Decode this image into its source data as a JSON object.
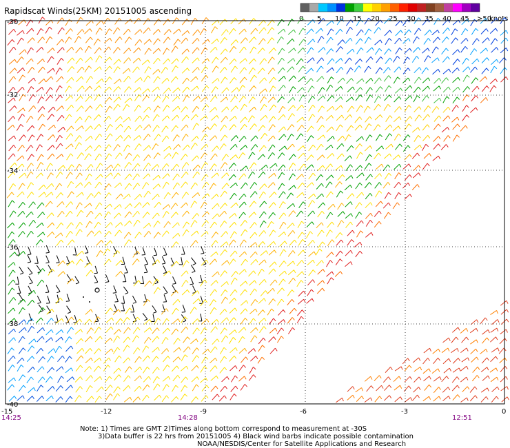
{
  "title": "Rapidscat Winds(25KM) 20151005 ascending",
  "legend": {
    "ticks": [
      "0",
      "5",
      "10",
      "15",
      "20",
      "25",
      "30",
      "35",
      "40",
      "45",
      ">50"
    ],
    "unit": "knots",
    "colors": [
      "#606060",
      "#a8a8a8",
      "#00c8ff",
      "#0090ff",
      "#0030e0",
      "#00a000",
      "#40d040",
      "#ffff00",
      "#ffd000",
      "#ffa000",
      "#ff6000",
      "#ff2000",
      "#e00000",
      "#c02020",
      "#804020",
      "#a06040",
      "#c040a0",
      "#ff00ff",
      "#a000c0",
      "#6000a0"
    ]
  },
  "lat_labels": [
    "-30",
    "-32",
    "-34",
    "-36",
    "-38",
    "-40"
  ],
  "lon_labels": [
    "-15",
    "-12",
    "-9",
    "-6",
    "-3",
    "0"
  ],
  "time_labels": [
    "14:25",
    "14:28",
    "12:51"
  ],
  "notes": [
    "Note: 1) Times are GMT 2)Times along bottom correspond to measurement at -30S",
    "3)Data buffer is 22 hrs from 20151005 4) Black wind barbs indicate possible contamination",
    "NOAA/NESDIS/Center for Satellite Applications and Research"
  ]
}
